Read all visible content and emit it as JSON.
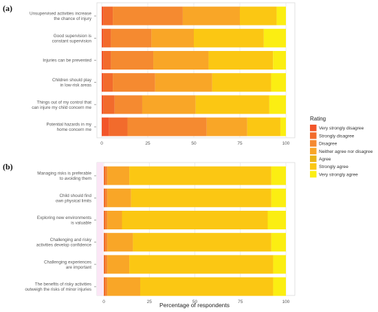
{
  "colors": {
    "very_strongly_disagree": "#f2552a",
    "strongly_disagree": "#f26b2c",
    "disagree": "#f58a30",
    "neither": "#f9a627",
    "agree": "#e9b418",
    "strongly_agree": "#fbc713",
    "very_strongly_agree": "#fbee12"
  },
  "chart_data": [
    {
      "type": "bar",
      "orientation": "horizontal",
      "stacked": true,
      "panel_label": "(a)",
      "xlabel": "",
      "xlim": [
        0,
        100
      ],
      "xticks": [
        "0",
        "25",
        "50",
        "75",
        "100"
      ],
      "grid": true,
      "categories": [
        [
          "Unsupervised activities increase",
          "the chance of injury"
        ],
        [
          "Good supervision is",
          "constant supervision"
        ],
        [
          "Injuries can be prevented"
        ],
        [
          "Children should play",
          "in low-risk areas"
        ],
        [
          "Things out of my control that",
          "can injure my child concern me"
        ],
        [
          "Potential hazards in my",
          "home concern me"
        ]
      ],
      "series": [
        {
          "name": "Very strongly disagree",
          "values": [
            1,
            1,
            1,
            1,
            1,
            4
          ]
        },
        {
          "name": "Strongly disagree",
          "values": [
            5,
            4,
            4,
            5,
            6,
            10
          ]
        },
        {
          "name": "Disagree",
          "values": [
            38,
            22,
            23,
            23,
            15,
            43
          ]
        },
        {
          "name": "Neither agree nor disagree",
          "values": [
            31,
            23,
            30,
            31,
            29,
            22
          ]
        },
        {
          "name": "Agree",
          "values": [
            0,
            0,
            0,
            0,
            0,
            0
          ]
        },
        {
          "name": "Strongly agree",
          "values": [
            20,
            38,
            35,
            32,
            40,
            18
          ]
        },
        {
          "name": "Very strongly agree",
          "values": [
            5,
            12,
            7,
            8,
            9,
            3
          ]
        }
      ]
    },
    {
      "type": "bar",
      "orientation": "horizontal",
      "stacked": true,
      "panel_label": "(b)",
      "xlabel": "Percentage of respondents",
      "xlim": [
        0,
        100
      ],
      "xticks": [
        "0",
        "25",
        "50",
        "75",
        "100"
      ],
      "grid": true,
      "categories": [
        [
          "Managing risks is preferable",
          "to avoiding them"
        ],
        [
          "Child should find",
          "own physical limits"
        ],
        [
          "Exploring new environments",
          "is valuable"
        ],
        [
          "Challenging and risky",
          "activities develop confidence"
        ],
        [
          "Challenging experiences",
          "are important"
        ],
        [
          "The benefits of risky activities",
          "outweigh the risks of minor injuries"
        ]
      ],
      "series": [
        {
          "name": "Very strongly disagree",
          "values": [
            0,
            0,
            0,
            0,
            0,
            0
          ]
        },
        {
          "name": "Strongly disagree",
          "values": [
            1,
            1,
            1,
            1,
            1,
            1
          ]
        },
        {
          "name": "Disagree",
          "values": [
            1,
            1,
            1,
            1,
            1,
            1
          ]
        },
        {
          "name": "Neither agree nor disagree",
          "values": [
            12,
            13,
            8,
            14,
            12,
            18
          ]
        },
        {
          "name": "Agree",
          "values": [
            0,
            0,
            0,
            0,
            0,
            0
          ]
        },
        {
          "name": "Strongly agree",
          "values": [
            78,
            77,
            80,
            76,
            79,
            73
          ]
        },
        {
          "name": "Very strongly agree",
          "values": [
            8,
            8,
            10,
            8,
            7,
            7
          ]
        }
      ]
    }
  ],
  "legend": {
    "title": "Rating",
    "placement": "right",
    "items": [
      "Very strongly disagree",
      "Strongly disagree",
      "Disagree",
      "Neither agree nor disagree",
      "Agree",
      "Strongly agree",
      "Very strongly agree"
    ]
  }
}
